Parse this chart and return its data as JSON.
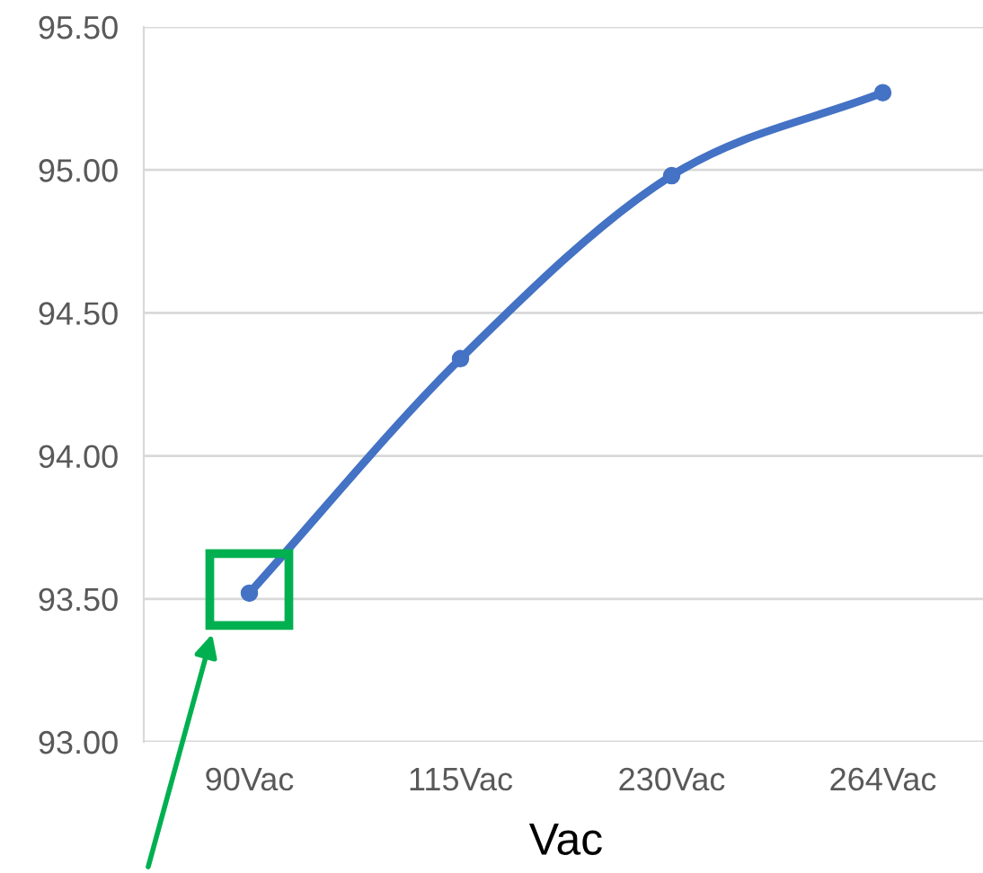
{
  "chart_data": {
    "type": "line",
    "xlabel": "Vac",
    "categories": [
      "90Vac",
      "115Vac",
      "230Vac",
      "264Vac"
    ],
    "series": [
      {
        "color": "#4472c4",
        "values": [
          93.52,
          94.34,
          94.98,
          95.27
        ]
      }
    ],
    "ylim": [
      93.0,
      95.5
    ],
    "yticks": [
      {
        "value": 93.0,
        "label": "93.00"
      },
      {
        "value": 93.5,
        "label": "93.50"
      },
      {
        "value": 94.0,
        "label": "94.00"
      },
      {
        "value": 94.5,
        "label": "94.50"
      },
      {
        "value": 95.0,
        "label": "95.00"
      },
      {
        "value": 95.5,
        "label": "95.50"
      }
    ],
    "grid": "y",
    "marker": "circle",
    "line_style": "solid",
    "legend": false
  }
}
